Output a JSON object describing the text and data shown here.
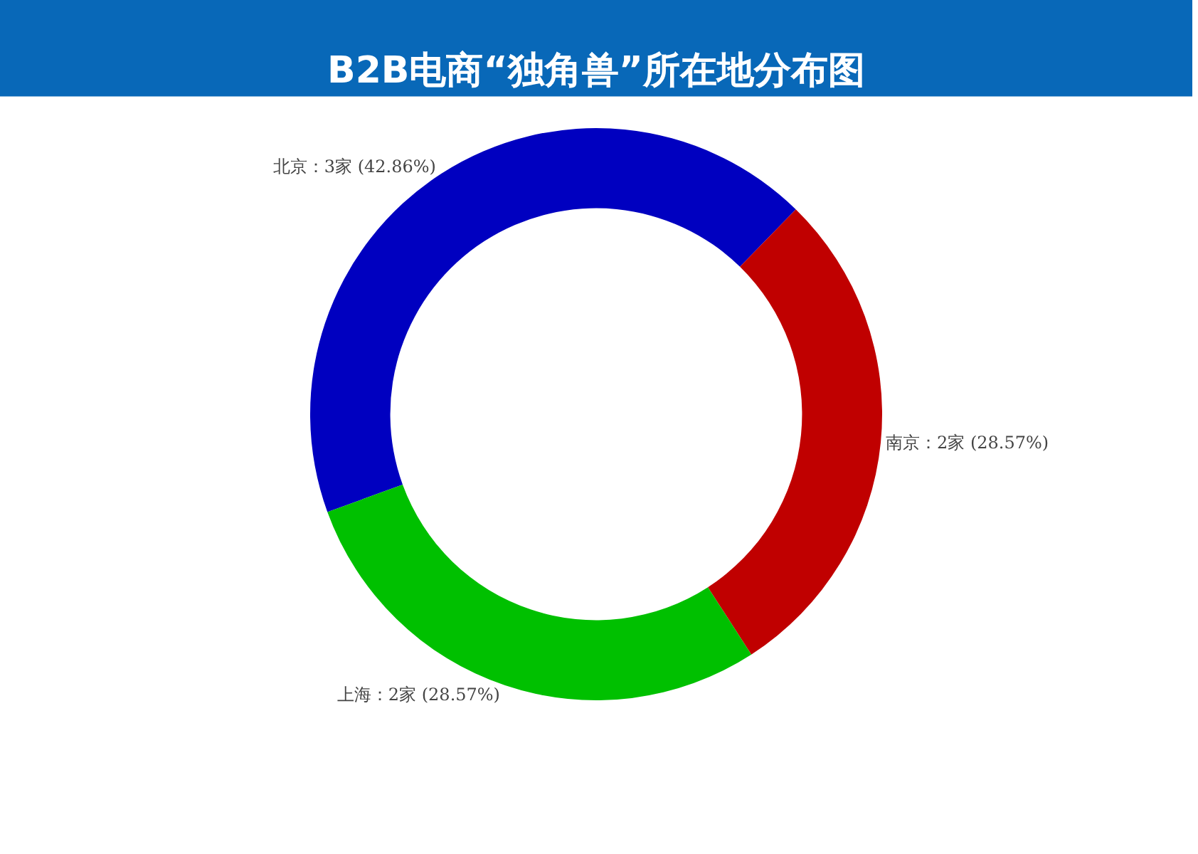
{
  "chart_data": {
    "type": "donut",
    "title": "B2B电商“独角兽”所在地分布图",
    "categories": [
      "北京",
      "南京",
      "上海"
    ],
    "values": [
      3,
      2,
      2
    ],
    "value_labels": [
      "3家 (42.86%)",
      "2家 (28.57%)",
      "2家 (28.57%)"
    ],
    "colors": [
      "#0000c0",
      "#c00000",
      "#00c000"
    ],
    "legend": false
  }
}
